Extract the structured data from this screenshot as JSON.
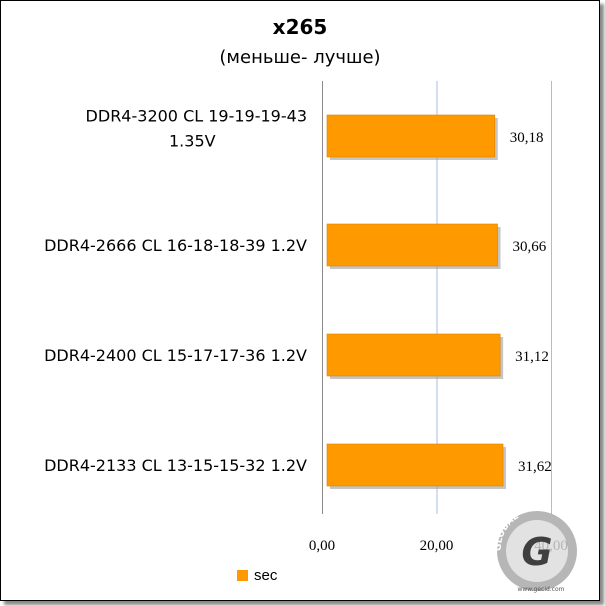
{
  "chart_data": {
    "type": "bar",
    "orientation": "horizontal",
    "title": "x265",
    "subtitle": "(меньше- лучше)",
    "categories": [
      "DDR4-3200 CL 19-19-19-43 1.35V",
      "DDR4-2666 CL 16-18-18-39 1.2V",
      "DDR4-2400 CL 15-17-17-36 1.2V",
      "DDR4-2133 CL 13-15-15-32 1.2V"
    ],
    "category_lines": [
      [
        "DDR4-3200 CL 19-19-19-43",
        "1.35V"
      ],
      [
        "DDR4-2666 CL 16-18-18-39 1.2V"
      ],
      [
        "DDR4-2400 CL 15-17-17-36 1.2V"
      ],
      [
        "DDR4-2133 CL 13-15-15-32 1.2V"
      ]
    ],
    "series": [
      {
        "name": "sec",
        "values": [
          30.18,
          30.66,
          31.12,
          31.62
        ],
        "value_labels": [
          "30,18",
          "30,66",
          "31,12",
          "31,62"
        ],
        "color": "#FF9900"
      }
    ],
    "xlim": [
      0,
      40
    ],
    "xticks": [
      0,
      20,
      40
    ],
    "xtick_labels": [
      "0,00",
      "20,00",
      "40,00"
    ],
    "grid": "vertical",
    "grid_color": "#A9BCE3",
    "legend_position": "bottom"
  },
  "watermark": {
    "top_text": "GLOBAL",
    "letter": "G",
    "url": "www.gecid.com",
    "colors": [
      "#4a4a4a",
      "#8c8c8c",
      "#FF9900"
    ]
  }
}
